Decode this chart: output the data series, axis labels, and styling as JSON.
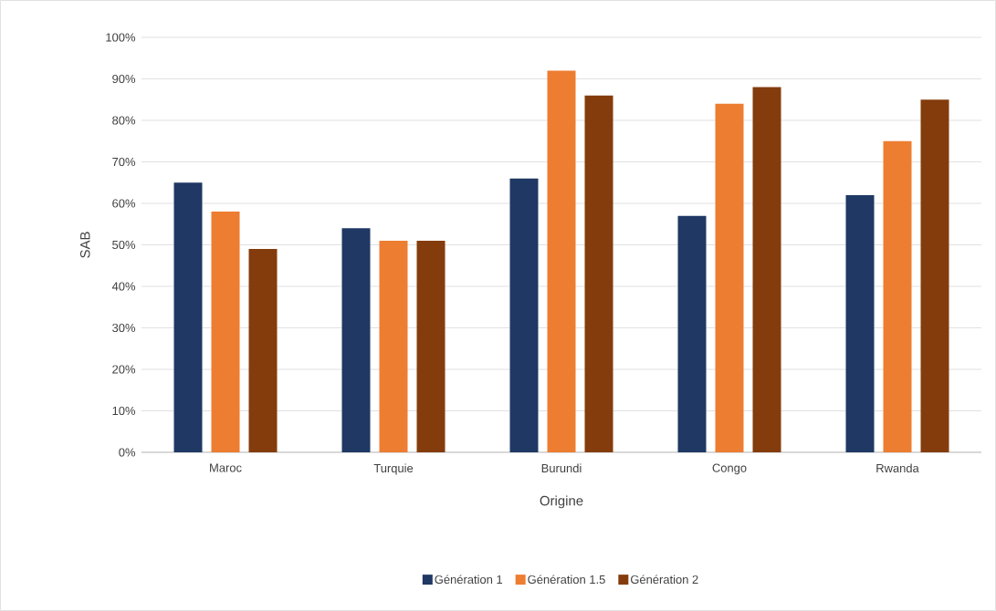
{
  "chart_data": {
    "type": "bar",
    "xlabel": "Origine",
    "ylabel": "SAB",
    "categories": [
      "Maroc",
      "Turquie",
      "Burundi",
      "Congo",
      "Rwanda"
    ],
    "series": [
      {
        "name": "Génération 1",
        "color": "#1f3864",
        "values": [
          65,
          54,
          66,
          57,
          62
        ]
      },
      {
        "name": "Génération 1.5",
        "color": "#ed7d31",
        "values": [
          58,
          51,
          92,
          84,
          75
        ]
      },
      {
        "name": "Génération 2",
        "color": "#843c0c",
        "values": [
          49,
          51,
          86,
          88,
          85
        ]
      }
    ],
    "ylim": [
      0,
      100
    ],
    "yticks": [
      {
        "value": 0,
        "label": "0%"
      },
      {
        "value": 10,
        "label": "10%"
      },
      {
        "value": 20,
        "label": "20%"
      },
      {
        "value": 30,
        "label": "30%"
      },
      {
        "value": 40,
        "label": "40%"
      },
      {
        "value": 50,
        "label": "50%"
      },
      {
        "value": 60,
        "label": "60%"
      },
      {
        "value": 70,
        "label": "70%"
      },
      {
        "value": 80,
        "label": "80%"
      },
      {
        "value": 90,
        "label": "90%"
      },
      {
        "value": 100,
        "label": "100%"
      }
    ],
    "grid": "y",
    "legend": "bottom"
  }
}
